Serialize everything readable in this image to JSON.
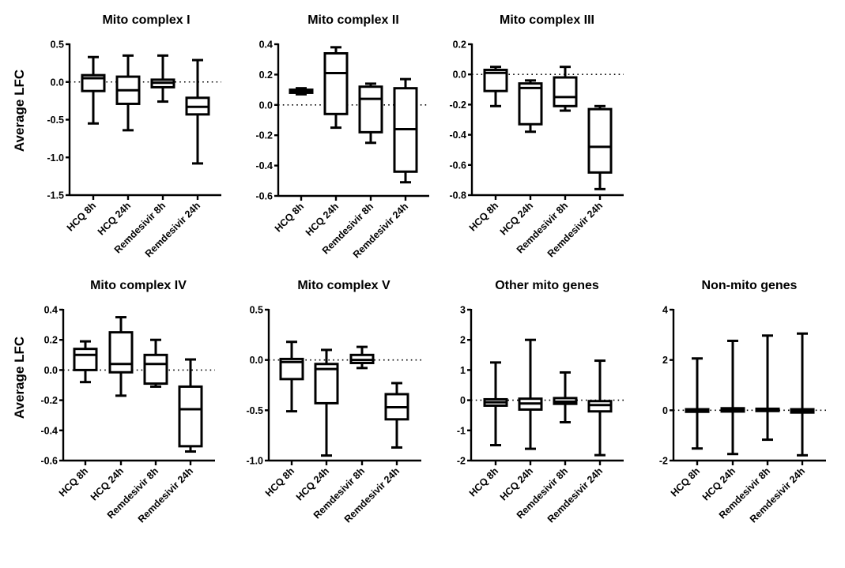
{
  "chart_data": [
    {
      "type": "box",
      "title": "Mito complex I",
      "ylabel": "Average LFC",
      "xlabel": "",
      "categories": [
        "HCQ 8h",
        "HCQ 24h",
        "Remdesivir 8h",
        "Remdesivir 24h"
      ],
      "ylim": [
        -1.5,
        0.5
      ],
      "yticks": [
        0.5,
        0.0,
        -0.5,
        -1.0,
        -1.5
      ],
      "ytick_labels": [
        "0.5",
        "0.0",
        "-0.5",
        "-1.0",
        "-1.5"
      ],
      "reference_line": 0,
      "boxes": [
        {
          "min": -0.55,
          "q1": -0.12,
          "median": 0.05,
          "q3": 0.09,
          "max": 0.33
        },
        {
          "min": -0.64,
          "q1": -0.29,
          "median": -0.11,
          "q3": 0.07,
          "max": 0.35
        },
        {
          "min": -0.26,
          "q1": -0.07,
          "median": -0.01,
          "q3": 0.03,
          "max": 0.35
        },
        {
          "min": -1.08,
          "q1": -0.43,
          "median": -0.33,
          "q3": -0.21,
          "max": 0.29
        }
      ]
    },
    {
      "type": "box",
      "title": "Mito complex II",
      "ylabel": "",
      "xlabel": "",
      "categories": [
        "HCQ 8h",
        "HCQ 24h",
        "Remdesivir 8h",
        "Remdesivir 24h"
      ],
      "ylim": [
        -0.6,
        0.4
      ],
      "yticks": [
        0.4,
        0.2,
        0.0,
        -0.2,
        -0.4,
        -0.6
      ],
      "ytick_labels": [
        "0.4",
        "0.2",
        "0.0",
        "-0.2",
        "-0.4",
        "-0.6"
      ],
      "reference_line": 0,
      "boxes": [
        {
          "min": 0.07,
          "q1": 0.08,
          "median": 0.09,
          "q3": 0.1,
          "max": 0.11
        },
        {
          "min": -0.15,
          "q1": -0.06,
          "median": 0.21,
          "q3": 0.34,
          "max": 0.38
        },
        {
          "min": -0.25,
          "q1": -0.18,
          "median": 0.04,
          "q3": 0.12,
          "max": 0.14
        },
        {
          "min": -0.51,
          "q1": -0.44,
          "median": -0.16,
          "q3": 0.11,
          "max": 0.17
        }
      ]
    },
    {
      "type": "box",
      "title": "Mito complex III",
      "ylabel": "",
      "xlabel": "",
      "categories": [
        "HCQ 8h",
        "HCQ 24h",
        "Remdesivir 8h",
        "Remdesivir 24h"
      ],
      "ylim": [
        -0.8,
        0.2
      ],
      "yticks": [
        0.2,
        0.0,
        -0.2,
        -0.4,
        -0.6,
        -0.8
      ],
      "ytick_labels": [
        "0.2",
        "0.0",
        "-0.2",
        "-0.4",
        "-0.6",
        "-0.8"
      ],
      "reference_line": 0,
      "boxes": [
        {
          "min": -0.21,
          "q1": -0.11,
          "median": 0.01,
          "q3": 0.03,
          "max": 0.05
        },
        {
          "min": -0.38,
          "q1": -0.33,
          "median": -0.09,
          "q3": -0.06,
          "max": -0.04
        },
        {
          "min": -0.24,
          "q1": -0.21,
          "median": -0.15,
          "q3": -0.02,
          "max": 0.05
        },
        {
          "min": -0.76,
          "q1": -0.65,
          "median": -0.48,
          "q3": -0.23,
          "max": -0.21
        }
      ]
    },
    {
      "type": "box",
      "title": "Mito complex IV",
      "ylabel": "Average LFC",
      "xlabel": "",
      "categories": [
        "HCQ 8h",
        "HCQ 24h",
        "Remdesivir 8h",
        "Remdesivir 24h"
      ],
      "ylim": [
        -0.6,
        0.4
      ],
      "yticks": [
        0.4,
        0.2,
        0.0,
        -0.2,
        -0.4,
        -0.6
      ],
      "ytick_labels": [
        "0.4",
        "0.2",
        "0.0",
        "-0.2",
        "-0.4",
        "-0.6"
      ],
      "reference_line": 0,
      "boxes": [
        {
          "min": -0.08,
          "q1": 0.0,
          "median": 0.1,
          "q3": 0.14,
          "max": 0.19
        },
        {
          "min": -0.17,
          "q1": -0.015,
          "median": 0.04,
          "q3": 0.25,
          "max": 0.35
        },
        {
          "min": -0.11,
          "q1": -0.09,
          "median": 0.04,
          "q3": 0.1,
          "max": 0.2
        },
        {
          "min": -0.54,
          "q1": -0.505,
          "median": -0.26,
          "q3": -0.11,
          "max": 0.07
        }
      ]
    },
    {
      "type": "box",
      "title": "Mito complex V",
      "ylabel": "",
      "xlabel": "",
      "categories": [
        "HCQ 8h",
        "HCQ 24h",
        "Remdesivir 8h",
        "Remdesivir 24h"
      ],
      "ylim": [
        -1.0,
        0.5
      ],
      "yticks": [
        0.5,
        0.0,
        -0.5,
        -1.0
      ],
      "ytick_labels": [
        "0.5",
        "0.0",
        "-0.5",
        "-1.0"
      ],
      "reference_line": 0,
      "boxes": [
        {
          "min": -0.51,
          "q1": -0.19,
          "median": -0.02,
          "q3": 0.01,
          "max": 0.18
        },
        {
          "min": -0.95,
          "q1": -0.43,
          "median": -0.09,
          "q3": -0.04,
          "max": 0.1
        },
        {
          "min": -0.08,
          "q1": -0.03,
          "median": 0.0,
          "q3": 0.05,
          "max": 0.13
        },
        {
          "min": -0.87,
          "q1": -0.59,
          "median": -0.47,
          "q3": -0.34,
          "max": -0.23
        }
      ]
    },
    {
      "type": "box",
      "title": "Other mito genes",
      "ylabel": "",
      "xlabel": "",
      "categories": [
        "HCQ 8h",
        "HCQ 24h",
        "Remdesivir 8h",
        "Remdesivir 24h"
      ],
      "ylim": [
        -2,
        3
      ],
      "yticks": [
        3,
        2,
        1,
        0,
        -1,
        -2
      ],
      "ytick_labels": [
        "3",
        "2",
        "1",
        "0",
        "-1",
        "-2"
      ],
      "reference_line": 0,
      "boxes": [
        {
          "min": -1.49,
          "q1": -0.18,
          "median": -0.07,
          "q3": 0.03,
          "max": 1.25
        },
        {
          "min": -1.61,
          "q1": -0.31,
          "median": -0.11,
          "q3": 0.05,
          "max": 2.0
        },
        {
          "min": -0.73,
          "q1": -0.12,
          "median": -0.05,
          "q3": 0.07,
          "max": 0.92
        },
        {
          "min": -1.82,
          "q1": -0.37,
          "median": -0.16,
          "q3": -0.03,
          "max": 1.31
        }
      ]
    },
    {
      "type": "box",
      "title": "Non-mito genes",
      "ylabel": "",
      "xlabel": "",
      "categories": [
        "HCQ 8h",
        "HCQ 24h",
        "Remdesivir 8h",
        "Remdesivir 24h"
      ],
      "ylim": [
        -2,
        4
      ],
      "yticks": [
        4,
        2,
        0,
        -2
      ],
      "ytick_labels": [
        "4",
        "2",
        "0",
        "-2"
      ],
      "reference_line": 0,
      "boxes": [
        {
          "min": -1.52,
          "q1": -0.06,
          "median": -0.01,
          "q3": 0.04,
          "max": 2.06
        },
        {
          "min": -1.74,
          "q1": -0.05,
          "median": 0.02,
          "q3": 0.08,
          "max": 2.76
        },
        {
          "min": -1.17,
          "q1": -0.03,
          "median": 0.02,
          "q3": 0.06,
          "max": 2.97
        },
        {
          "min": -1.79,
          "q1": -0.09,
          "median": -0.03,
          "q3": 0.04,
          "max": 3.05
        }
      ]
    }
  ]
}
